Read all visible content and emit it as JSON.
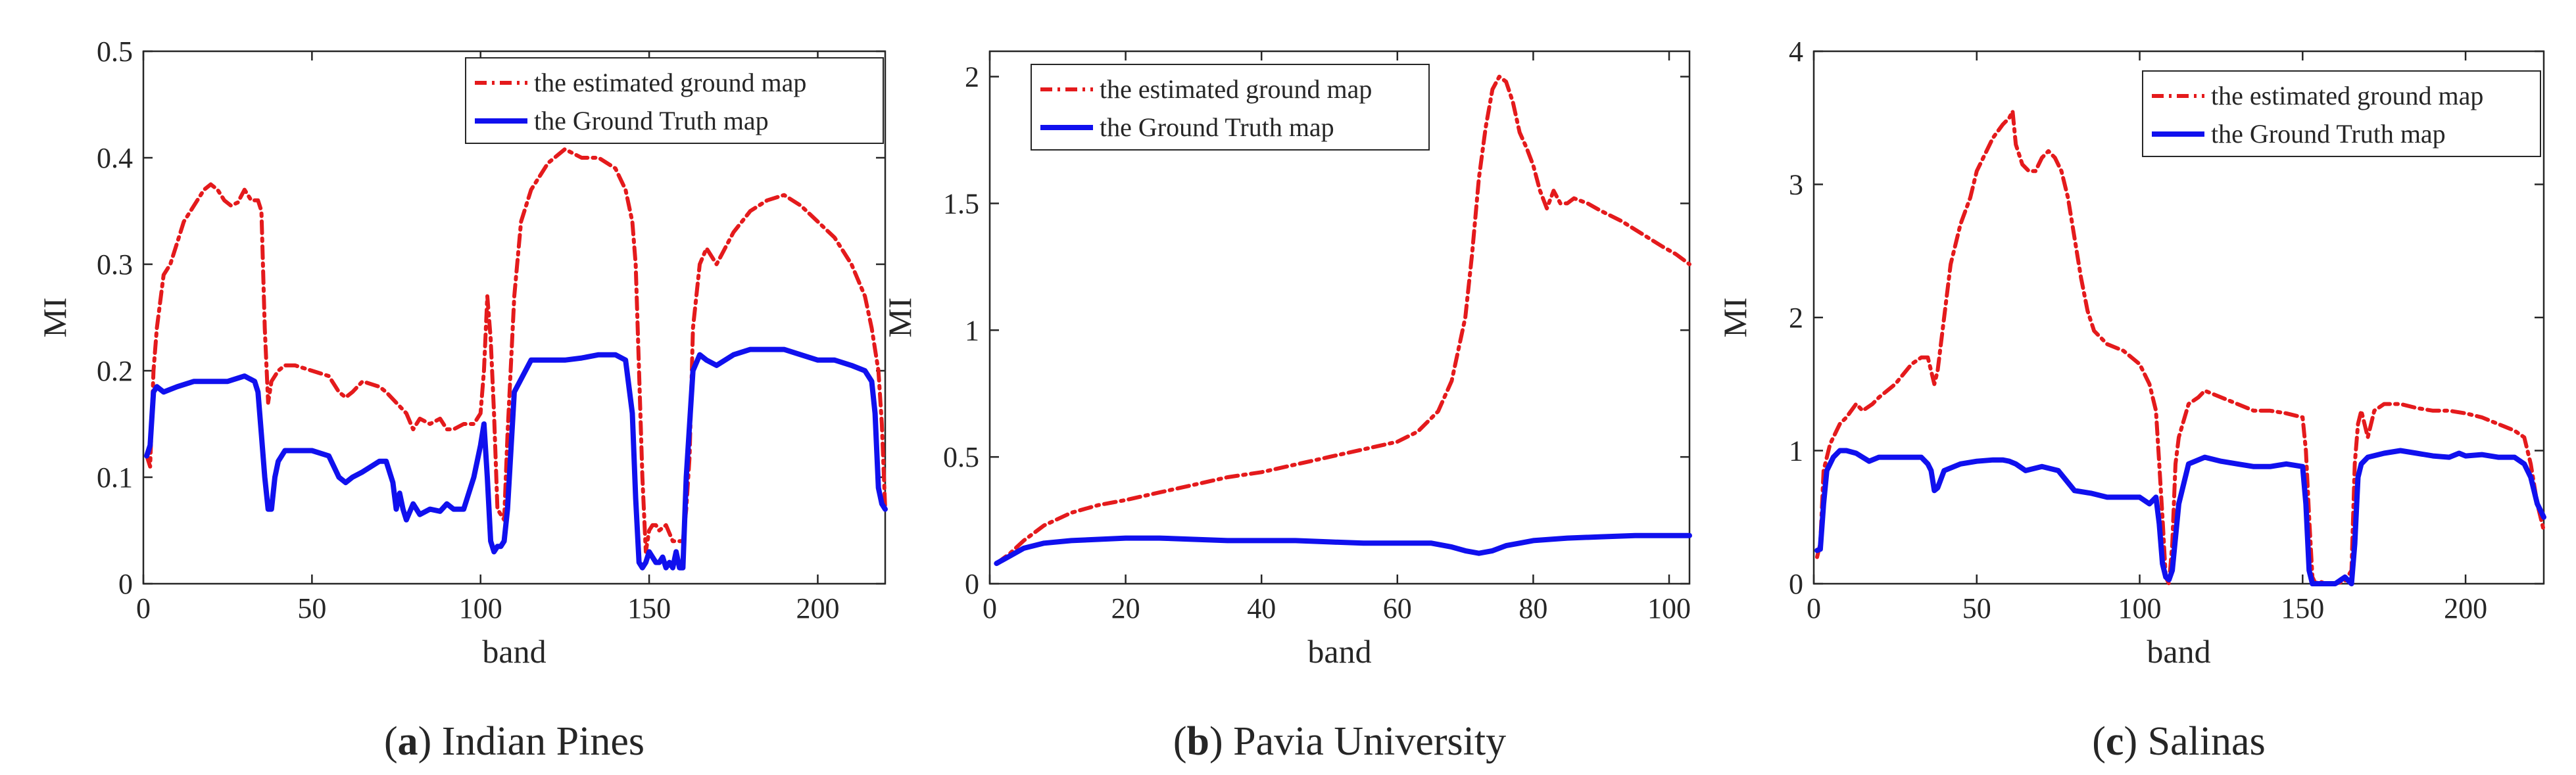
{
  "colors": {
    "estimated": "#e41a1c",
    "ground_truth": "#1010ee",
    "axis": "#262626",
    "caption": "#000000"
  },
  "chart_data": [
    {
      "type": "line",
      "caption": {
        "label": "a",
        "text": "Indian Pines"
      },
      "xlabel": "band",
      "ylabel": "MI",
      "xlim": [
        0,
        220
      ],
      "ylim": [
        0,
        0.5
      ],
      "xticks": [
        0,
        50,
        100,
        150,
        200
      ],
      "yticks": [
        0,
        0.1,
        0.2,
        0.3,
        0.4,
        0.5
      ],
      "xtick_labels": [
        "0",
        "50",
        "100",
        "150",
        "200"
      ],
      "ytick_labels": [
        "0",
        "0.1",
        "0.2",
        "0.3",
        "0.4",
        "0.5"
      ],
      "legend_position": "top-right",
      "series": [
        {
          "name": "the estimated ground map",
          "style": "dash-dot",
          "x": [
            1,
            2,
            3,
            4,
            6,
            8,
            10,
            12,
            14,
            16,
            18,
            20,
            22,
            24,
            26,
            28,
            30,
            32,
            34,
            35,
            36,
            37,
            38,
            40,
            42,
            45,
            50,
            55,
            58,
            60,
            62,
            65,
            70,
            72,
            75,
            78,
            80,
            82,
            85,
            88,
            90,
            92,
            95,
            98,
            100,
            101,
            102,
            103,
            104,
            105,
            106,
            107,
            108,
            110,
            112,
            115,
            120,
            125,
            130,
            135,
            140,
            143,
            145,
            146,
            147,
            148,
            149,
            150,
            151,
            152,
            153,
            155,
            157,
            159,
            160,
            161,
            162,
            163,
            165,
            167,
            170,
            175,
            180,
            185,
            190,
            195,
            200,
            205,
            210,
            214,
            216,
            218,
            219,
            220
          ],
          "y": [
            0.12,
            0.11,
            0.2,
            0.24,
            0.29,
            0.3,
            0.32,
            0.34,
            0.35,
            0.36,
            0.37,
            0.375,
            0.37,
            0.36,
            0.355,
            0.358,
            0.37,
            0.36,
            0.36,
            0.35,
            0.24,
            0.17,
            0.19,
            0.2,
            0.205,
            0.205,
            0.2,
            0.195,
            0.18,
            0.175,
            0.18,
            0.19,
            0.185,
            0.18,
            0.17,
            0.16,
            0.145,
            0.155,
            0.15,
            0.155,
            0.145,
            0.145,
            0.15,
            0.15,
            0.16,
            0.2,
            0.27,
            0.23,
            0.16,
            0.07,
            0.065,
            0.06,
            0.14,
            0.27,
            0.34,
            0.37,
            0.395,
            0.408,
            0.4,
            0.4,
            0.39,
            0.37,
            0.34,
            0.3,
            0.2,
            0.1,
            0.03,
            0.05,
            0.055,
            0.055,
            0.05,
            0.055,
            0.04,
            0.04,
            0.04,
            0.07,
            0.12,
            0.24,
            0.3,
            0.315,
            0.3,
            0.33,
            0.35,
            0.36,
            0.365,
            0.355,
            0.34,
            0.325,
            0.3,
            0.27,
            0.24,
            0.2,
            0.15,
            0.07
          ]
        },
        {
          "name": "the Ground Truth map",
          "style": "solid",
          "x": [
            1,
            2,
            3,
            4,
            6,
            10,
            15,
            20,
            25,
            30,
            33,
            34,
            35,
            36,
            37,
            38,
            39,
            40,
            42,
            45,
            50,
            55,
            58,
            60,
            62,
            65,
            70,
            72,
            74,
            75,
            76,
            77,
            78,
            80,
            82,
            85,
            88,
            90,
            92,
            95,
            98,
            100,
            101,
            102,
            103,
            104,
            105,
            106,
            107,
            108,
            110,
            115,
            120,
            125,
            130,
            135,
            140,
            143,
            145,
            146,
            147,
            148,
            149,
            150,
            151,
            152,
            153,
            154,
            155,
            156,
            157,
            158,
            159,
            160,
            161,
            162,
            163,
            165,
            167,
            170,
            175,
            180,
            185,
            190,
            195,
            200,
            205,
            210,
            214,
            216,
            217,
            218,
            219,
            220
          ],
          "y": [
            0.12,
            0.13,
            0.18,
            0.185,
            0.18,
            0.185,
            0.19,
            0.19,
            0.19,
            0.195,
            0.19,
            0.18,
            0.14,
            0.1,
            0.07,
            0.07,
            0.1,
            0.115,
            0.125,
            0.125,
            0.125,
            0.12,
            0.1,
            0.095,
            0.1,
            0.105,
            0.115,
            0.115,
            0.095,
            0.07,
            0.085,
            0.07,
            0.06,
            0.075,
            0.065,
            0.07,
            0.068,
            0.075,
            0.07,
            0.07,
            0.1,
            0.13,
            0.15,
            0.1,
            0.04,
            0.03,
            0.035,
            0.035,
            0.04,
            0.07,
            0.18,
            0.21,
            0.21,
            0.21,
            0.212,
            0.215,
            0.215,
            0.21,
            0.16,
            0.08,
            0.02,
            0.015,
            0.02,
            0.03,
            0.025,
            0.02,
            0.02,
            0.025,
            0.015,
            0.02,
            0.015,
            0.03,
            0.015,
            0.015,
            0.1,
            0.15,
            0.2,
            0.215,
            0.21,
            0.205,
            0.215,
            0.22,
            0.22,
            0.22,
            0.215,
            0.21,
            0.21,
            0.205,
            0.2,
            0.19,
            0.16,
            0.09,
            0.075,
            0.07
          ]
        }
      ]
    },
    {
      "type": "line",
      "caption": {
        "label": "b",
        "text": "Pavia University"
      },
      "xlabel": "band",
      "ylabel": "MI",
      "xlim": [
        0,
        103
      ],
      "ylim": [
        0,
        2.1
      ],
      "xticks": [
        0,
        20,
        40,
        60,
        80,
        100
      ],
      "yticks": [
        0,
        0.5,
        1,
        1.5,
        2
      ],
      "xtick_labels": [
        "0",
        "20",
        "40",
        "60",
        "80",
        "100"
      ],
      "ytick_labels": [
        "0",
        "0.5",
        "1",
        "1.5",
        "2"
      ],
      "legend_position": "top-left",
      "series": [
        {
          "name": "the estimated ground map",
          "style": "dash-dot",
          "x": [
            1,
            3,
            5,
            8,
            12,
            16,
            20,
            25,
            30,
            35,
            40,
            45,
            50,
            55,
            60,
            63,
            66,
            68,
            70,
            71,
            72,
            73,
            74,
            75,
            76,
            77,
            78,
            79,
            80,
            81,
            82,
            83,
            84,
            85,
            86,
            88,
            90,
            93,
            96,
            99,
            101,
            103
          ],
          "y": [
            0.08,
            0.12,
            0.17,
            0.23,
            0.28,
            0.31,
            0.33,
            0.36,
            0.39,
            0.42,
            0.44,
            0.47,
            0.5,
            0.53,
            0.56,
            0.6,
            0.68,
            0.8,
            1.05,
            1.3,
            1.6,
            1.8,
            1.95,
            2.0,
            1.98,
            1.9,
            1.78,
            1.72,
            1.65,
            1.55,
            1.48,
            1.55,
            1.5,
            1.5,
            1.52,
            1.5,
            1.47,
            1.43,
            1.38,
            1.33,
            1.3,
            1.26
          ]
        },
        {
          "name": "the Ground Truth map",
          "style": "solid",
          "x": [
            1,
            3,
            5,
            8,
            12,
            16,
            20,
            25,
            30,
            35,
            40,
            45,
            50,
            55,
            60,
            65,
            68,
            70,
            72,
            74,
            76,
            78,
            80,
            85,
            90,
            95,
            100,
            103
          ],
          "y": [
            0.08,
            0.11,
            0.14,
            0.16,
            0.17,
            0.175,
            0.18,
            0.18,
            0.175,
            0.17,
            0.17,
            0.17,
            0.165,
            0.16,
            0.16,
            0.16,
            0.145,
            0.13,
            0.12,
            0.13,
            0.15,
            0.16,
            0.17,
            0.18,
            0.185,
            0.19,
            0.19,
            0.19
          ]
        }
      ]
    },
    {
      "type": "line",
      "caption": {
        "label": "c",
        "text": "Salinas"
      },
      "xlabel": "band",
      "ylabel": "MI",
      "xlim": [
        0,
        224
      ],
      "ylim": [
        0,
        4
      ],
      "xticks": [
        0,
        50,
        100,
        150,
        200
      ],
      "yticks": [
        0,
        1,
        2,
        3,
        4
      ],
      "xtick_labels": [
        "0",
        "50",
        "100",
        "150",
        "200"
      ],
      "ytick_labels": [
        "0",
        "1",
        "2",
        "3",
        "4"
      ],
      "legend_position": "top-right",
      "series": [
        {
          "name": "the estimated ground map",
          "style": "dash-dot",
          "x": [
            1,
            2,
            3,
            5,
            8,
            10,
            13,
            15,
            18,
            20,
            25,
            30,
            33,
            35,
            37,
            38,
            40,
            42,
            45,
            48,
            50,
            53,
            55,
            58,
            60,
            61,
            62,
            64,
            66,
            68,
            70,
            72,
            74,
            76,
            78,
            80,
            82,
            84,
            86,
            90,
            95,
            100,
            103,
            105,
            106,
            107,
            108,
            109,
            110,
            111,
            112,
            115,
            118,
            120,
            125,
            130,
            135,
            140,
            145,
            150,
            151,
            152,
            153,
            154,
            155,
            157,
            160,
            163,
            165,
            166,
            167,
            168,
            170,
            172,
            175,
            180,
            185,
            190,
            195,
            200,
            205,
            210,
            215,
            218,
            220,
            222,
            224
          ],
          "y": [
            0.2,
            0.3,
            0.85,
            1.05,
            1.2,
            1.25,
            1.35,
            1.3,
            1.35,
            1.4,
            1.5,
            1.65,
            1.7,
            1.7,
            1.5,
            1.6,
            2.0,
            2.4,
            2.7,
            2.9,
            3.1,
            3.25,
            3.35,
            3.45,
            3.5,
            3.55,
            3.3,
            3.15,
            3.1,
            3.1,
            3.2,
            3.25,
            3.2,
            3.1,
            2.9,
            2.6,
            2.3,
            2.05,
            1.9,
            1.8,
            1.75,
            1.65,
            1.5,
            1.3,
            0.9,
            0.5,
            0.05,
            0.0,
            0.3,
            0.9,
            1.1,
            1.35,
            1.4,
            1.45,
            1.4,
            1.35,
            1.3,
            1.3,
            1.28,
            1.25,
            1.0,
            0.5,
            0.05,
            0.0,
            0.02,
            0.0,
            0.0,
            0.02,
            0.1,
            0.9,
            1.2,
            1.3,
            1.1,
            1.3,
            1.35,
            1.35,
            1.32,
            1.3,
            1.3,
            1.28,
            1.25,
            1.2,
            1.15,
            1.1,
            0.9,
            0.6,
            0.4
          ]
        },
        {
          "name": "the Ground Truth map",
          "style": "solid",
          "x": [
            1,
            2,
            3,
            4,
            6,
            8,
            10,
            13,
            15,
            17,
            20,
            25,
            30,
            33,
            35,
            36,
            37,
            38,
            40,
            45,
            50,
            55,
            58,
            60,
            62,
            65,
            70,
            75,
            80,
            85,
            90,
            95,
            100,
            103,
            105,
            106,
            107,
            108,
            109,
            110,
            112,
            115,
            120,
            125,
            130,
            135,
            140,
            145,
            150,
            151,
            152,
            153,
            154,
            155,
            157,
            160,
            163,
            165,
            166,
            167,
            168,
            170,
            175,
            180,
            185,
            190,
            195,
            198,
            200,
            205,
            210,
            215,
            218,
            220,
            222,
            224
          ],
          "y": [
            0.25,
            0.26,
            0.6,
            0.85,
            0.95,
            1.0,
            1.0,
            0.98,
            0.95,
            0.92,
            0.95,
            0.95,
            0.95,
            0.95,
            0.9,
            0.85,
            0.7,
            0.72,
            0.85,
            0.9,
            0.92,
            0.93,
            0.93,
            0.92,
            0.9,
            0.85,
            0.88,
            0.85,
            0.7,
            0.68,
            0.65,
            0.65,
            0.65,
            0.6,
            0.65,
            0.45,
            0.15,
            0.05,
            0.03,
            0.1,
            0.6,
            0.9,
            0.95,
            0.92,
            0.9,
            0.88,
            0.88,
            0.9,
            0.88,
            0.6,
            0.1,
            0.0,
            0.0,
            0.0,
            0.0,
            0.0,
            0.05,
            0.0,
            0.3,
            0.8,
            0.9,
            0.95,
            0.98,
            1.0,
            0.98,
            0.96,
            0.95,
            0.98,
            0.96,
            0.97,
            0.95,
            0.95,
            0.9,
            0.8,
            0.6,
            0.5
          ]
        }
      ]
    }
  ]
}
